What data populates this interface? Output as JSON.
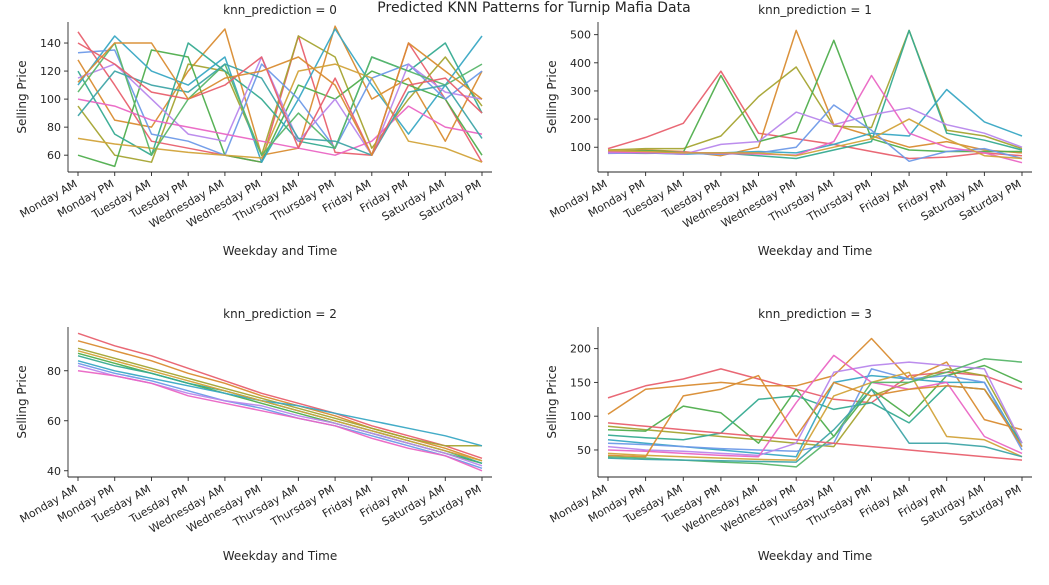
{
  "figure": {
    "suptitle": "Predicted KNN Patterns for Turnip Mafia Data"
  },
  "palette": [
    "#e8606e",
    "#d98c31",
    "#a5a431",
    "#4fae4d",
    "#36ab91",
    "#39a8c4",
    "#6e9ae8",
    "#b887ec",
    "#ea66c4",
    "#d2a33a",
    "#59b66a",
    "#3fa5a8"
  ],
  "chart_data": [
    {
      "type": "line",
      "title": "knn_prediction = 0",
      "xlabel": "Weekday and Time",
      "ylabel": "Selling Price",
      "categories": [
        "Monday AM",
        "Monday PM",
        "Tuesday AM",
        "Tuesday PM",
        "Wednesday AM",
        "Wednesday PM",
        "Thursday AM",
        "Thursday PM",
        "Friday AM",
        "Friday PM",
        "Saturday AM",
        "Saturday PM"
      ],
      "ylim": [
        48,
        155
      ],
      "yticks": [
        60,
        80,
        100,
        120,
        140
      ],
      "series": [
        {
          "values": [
            148,
            110,
            70,
            65,
            60,
            55,
            145,
            62,
            60,
            140,
            100,
            55
          ]
        },
        {
          "values": [
            128,
            85,
            80,
            120,
            150,
            60,
            65,
            152,
            100,
            115,
            70,
            120
          ]
        },
        {
          "values": [
            95,
            60,
            55,
            125,
            120,
            60,
            145,
            130,
            65,
            100,
            130,
            95
          ]
        },
        {
          "values": [
            60,
            52,
            135,
            130,
            60,
            55,
            110,
            100,
            120,
            110,
            100,
            60
          ]
        },
        {
          "values": [
            120,
            75,
            60,
            140,
            120,
            100,
            70,
            65,
            130,
            120,
            140,
            90
          ]
        },
        {
          "values": [
            110,
            145,
            120,
            110,
            130,
            55,
            100,
            150,
            110,
            75,
            110,
            145
          ]
        },
        {
          "values": [
            133,
            135,
            75,
            70,
            60,
            125,
            100,
            65,
            115,
            125,
            100,
            120
          ]
        },
        {
          "values": [
            115,
            125,
            100,
            75,
            70,
            130,
            70,
            100,
            60,
            125,
            105,
            100
          ]
        },
        {
          "values": [
            100,
            95,
            85,
            80,
            75,
            70,
            65,
            60,
            70,
            95,
            80,
            75
          ]
        },
        {
          "values": [
            72,
            68,
            65,
            62,
            60,
            58,
            120,
            125,
            115,
            70,
            65,
            55
          ]
        },
        {
          "values": [
            105,
            140,
            60,
            100,
            125,
            60,
            90,
            65,
            130,
            120,
            110,
            125
          ]
        },
        {
          "values": [
            88,
            120,
            110,
            105,
            125,
            115,
            72,
            70,
            60,
            105,
            110,
            72
          ]
        },
        {
          "values": [
            140,
            125,
            105,
            100,
            110,
            130,
            65,
            115,
            60,
            110,
            115,
            90
          ]
        },
        {
          "values": [
            112,
            140,
            140,
            100,
            115,
            120,
            130,
            110,
            60,
            140,
            120,
            100
          ]
        }
      ]
    },
    {
      "type": "line",
      "title": "knn_prediction = 1",
      "xlabel": "Weekday and Time",
      "ylabel": "Selling Price",
      "categories": [
        "Monday AM",
        "Monday PM",
        "Tuesday AM",
        "Tuesday PM",
        "Wednesday AM",
        "Wednesday PM",
        "Thursday AM",
        "Thursday PM",
        "Friday AM",
        "Friday PM",
        "Saturday AM",
        "Saturday PM"
      ],
      "ylim": [
        12,
        545
      ],
      "yticks": [
        100,
        200,
        300,
        400,
        500
      ],
      "series": [
        {
          "values": [
            95,
            135,
            185,
            370,
            150,
            130,
            110,
            85,
            60,
            65,
            80,
            70
          ]
        },
        {
          "values": [
            85,
            90,
            85,
            70,
            100,
            515,
            180,
            140,
            100,
            120,
            90,
            80
          ]
        },
        {
          "values": [
            90,
            95,
            95,
            140,
            280,
            385,
            175,
            170,
            515,
            160,
            140,
            95
          ]
        },
        {
          "values": [
            85,
            88,
            82,
            355,
            120,
            155,
            480,
            130,
            90,
            85,
            85,
            85
          ]
        },
        {
          "values": [
            80,
            78,
            80,
            80,
            70,
            60,
            90,
            120,
            515,
            150,
            125,
            90
          ]
        },
        {
          "values": [
            82,
            80,
            75,
            80,
            85,
            80,
            110,
            150,
            140,
            305,
            190,
            140
          ]
        },
        {
          "values": [
            78,
            80,
            78,
            75,
            80,
            100,
            250,
            160,
            50,
            85,
            95,
            60
          ]
        },
        {
          "values": [
            80,
            82,
            75,
            110,
            120,
            225,
            180,
            215,
            240,
            180,
            150,
            100
          ]
        },
        {
          "values": [
            84,
            80,
            82,
            78,
            76,
            72,
            120,
            355,
            150,
            100,
            80,
            45
          ]
        },
        {
          "values": [
            88,
            85,
            80,
            80,
            80,
            70,
            100,
            130,
            200,
            130,
            70,
            60
          ]
        }
      ]
    },
    {
      "type": "line",
      "title": "knn_prediction = 2",
      "xlabel": "Weekday and Time",
      "ylabel": "Selling Price",
      "categories": [
        "Monday AM",
        "Monday PM",
        "Tuesday AM",
        "Tuesday PM",
        "Wednesday AM",
        "Wednesday PM",
        "Thursday AM",
        "Thursday PM",
        "Friday AM",
        "Friday PM",
        "Saturday AM",
        "Saturday PM"
      ],
      "ylim": [
        37.5,
        97.5
      ],
      "yticks": [
        40,
        60,
        80
      ],
      "series": [
        {
          "values": [
            95,
            90,
            86,
            81,
            76,
            71,
            67,
            63,
            58,
            54,
            50,
            45
          ]
        },
        {
          "values": [
            92,
            88,
            84,
            79,
            75,
            70,
            66,
            62,
            57,
            53,
            49,
            44
          ]
        },
        {
          "values": [
            89,
            85,
            81,
            77,
            73,
            69,
            65,
            61,
            57,
            53,
            50,
            50
          ]
        },
        {
          "values": [
            87,
            83,
            79,
            75,
            71,
            67,
            63,
            59,
            55,
            51,
            47,
            43
          ]
        },
        {
          "values": [
            86,
            82,
            79,
            75,
            72,
            68,
            64,
            60,
            56,
            52,
            48,
            43
          ]
        },
        {
          "values": [
            84,
            80,
            77,
            74,
            71,
            68,
            66,
            63,
            60,
            57,
            54,
            50
          ]
        },
        {
          "values": [
            83,
            79,
            76,
            72,
            68,
            65,
            61,
            58,
            54,
            50,
            46,
            41
          ]
        },
        {
          "values": [
            82,
            78,
            75,
            71,
            68,
            66,
            62,
            59,
            55,
            51,
            47,
            42
          ]
        },
        {
          "values": [
            80,
            78,
            75,
            70,
            67,
            64,
            61,
            58,
            53,
            49,
            46,
            40
          ]
        },
        {
          "values": [
            88,
            84,
            80,
            76,
            72,
            68,
            64,
            60,
            56,
            52,
            48,
            44
          ]
        }
      ]
    },
    {
      "type": "line",
      "title": "knn_prediction = 3",
      "xlabel": "Weekday and Time",
      "ylabel": "Selling Price",
      "categories": [
        "Monday AM",
        "Monday PM",
        "Tuesday AM",
        "Tuesday PM",
        "Wednesday AM",
        "Wednesday PM",
        "Thursday AM",
        "Thursday PM",
        "Friday AM",
        "Friday PM",
        "Saturday AM",
        "Saturday PM"
      ],
      "ylim": [
        10,
        232
      ],
      "yticks": [
        50,
        100,
        150,
        200
      ],
      "series": [
        {
          "values": [
            127,
            145,
            155,
            170,
            155,
            140,
            125,
            120,
            160,
            165,
            160,
            140
          ]
        },
        {
          "values": [
            103,
            140,
            145,
            150,
            145,
            145,
            160,
            215,
            155,
            180,
            95,
            80
          ]
        },
        {
          "values": [
            85,
            80,
            75,
            70,
            65,
            60,
            55,
            130,
            150,
            170,
            160,
            60
          ]
        },
        {
          "values": [
            80,
            78,
            115,
            105,
            60,
            140,
            70,
            140,
            100,
            160,
            175,
            150
          ]
        },
        {
          "values": [
            72,
            68,
            65,
            75,
            125,
            130,
            110,
            120,
            90,
            145,
            140,
            60
          ]
        },
        {
          "values": [
            65,
            60,
            55,
            50,
            45,
            40,
            150,
            160,
            155,
            150,
            150,
            55
          ]
        },
        {
          "values": [
            60,
            58,
            55,
            52,
            50,
            48,
            60,
            170,
            155,
            160,
            150,
            50
          ]
        },
        {
          "values": [
            55,
            50,
            48,
            45,
            42,
            60,
            165,
            175,
            180,
            175,
            170,
            60
          ]
        },
        {
          "values": [
            50,
            48,
            45,
            42,
            40,
            120,
            190,
            150,
            140,
            150,
            70,
            45
          ]
        },
        {
          "values": [
            45,
            42,
            40,
            38,
            36,
            35,
            130,
            150,
            165,
            70,
            65,
            40
          ]
        },
        {
          "values": [
            40,
            38,
            35,
            32,
            30,
            25,
            70,
            150,
            150,
            165,
            185,
            180
          ]
        },
        {
          "values": [
            38,
            36,
            35,
            34,
            33,
            32,
            80,
            140,
            60,
            60,
            55,
            40
          ]
        },
        {
          "values": [
            90,
            85,
            80,
            75,
            70,
            65,
            60,
            55,
            50,
            45,
            40,
            35
          ]
        },
        {
          "values": [
            42,
            40,
            130,
            140,
            160,
            70,
            150,
            130,
            140,
            145,
            140,
            55
          ]
        }
      ]
    }
  ]
}
